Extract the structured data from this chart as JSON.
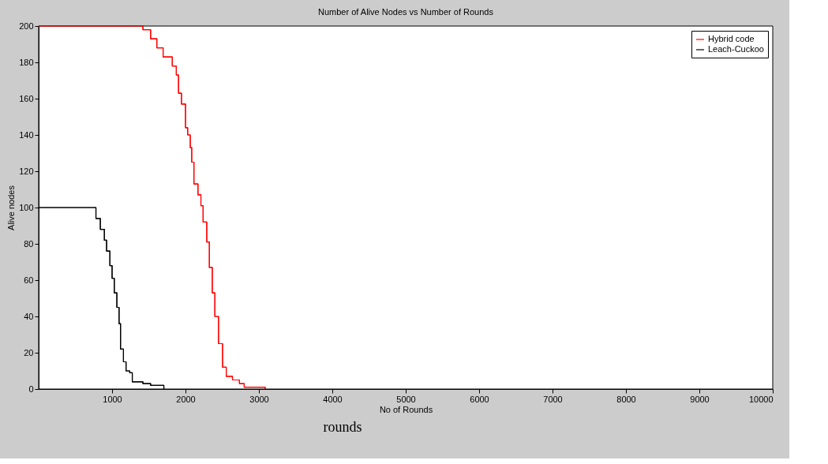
{
  "chart_data": {
    "type": "step",
    "title": "Number of Alive Nodes vs Number of Rounds",
    "xlabel": "No of Rounds",
    "ylabel": "Alive nodes",
    "annotations": [
      "rounds"
    ],
    "series": [
      {
        "name": "Hybrid code",
        "color": "#ff0000",
        "x": [
          0,
          1340,
          1420,
          1525,
          1610,
          1695,
          1820,
          1875,
          1905,
          1945,
          2000,
          2030,
          2065,
          2085,
          2115,
          2170,
          2210,
          2240,
          2290,
          2325,
          2365,
          2400,
          2450,
          2505,
          2555,
          2640,
          2735,
          2800,
          3085
        ],
        "values": [
          200,
          200,
          198,
          193,
          188,
          183,
          178,
          173,
          163,
          157,
          144,
          140,
          133,
          125,
          113,
          107,
          101,
          92,
          81,
          67,
          53,
          40,
          25,
          12,
          7,
          5,
          3,
          1,
          0
        ]
      },
      {
        "name": "Leach-Cuckoo",
        "color": "#000000",
        "x": [
          0,
          705,
          780,
          840,
          895,
          925,
          970,
          1000,
          1030,
          1065,
          1095,
          1115,
          1155,
          1190,
          1240,
          1275,
          1420,
          1525,
          1705
        ],
        "values": [
          100,
          100,
          94,
          88,
          82,
          76,
          68,
          61,
          53,
          45,
          36,
          22,
          15,
          10,
          9,
          4,
          3,
          2,
          0
        ]
      }
    ],
    "xlim": [
      0,
      10000
    ],
    "xticks": [
      1000,
      2000,
      3000,
      4000,
      5000,
      6000,
      7000,
      8000,
      9000,
      10000
    ],
    "ylim": [
      0,
      200
    ],
    "yticks": [
      0,
      20,
      40,
      60,
      80,
      100,
      120,
      140,
      160,
      180,
      200
    ],
    "legend": "top right",
    "grid": false
  }
}
